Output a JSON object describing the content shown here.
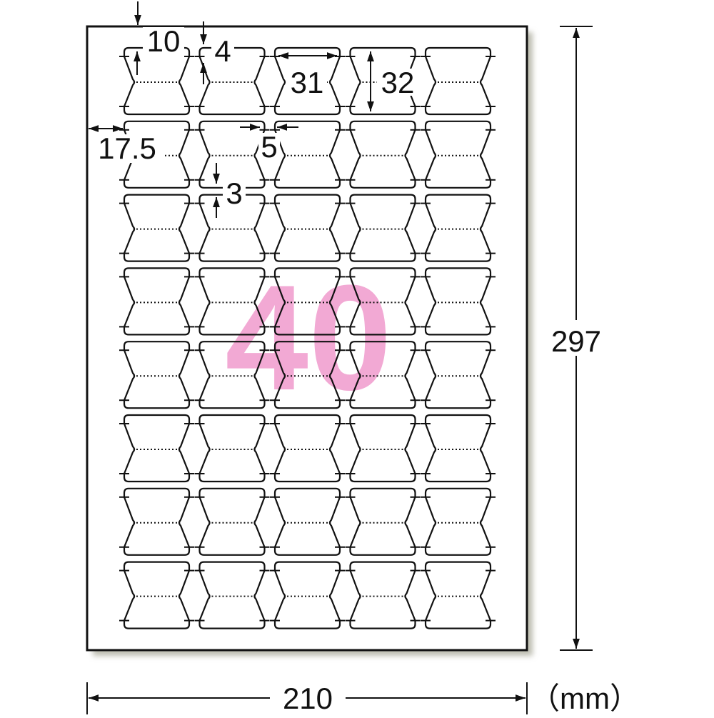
{
  "sheet": {
    "label_count_text": "40",
    "label_count_color": "#f2a9d4",
    "rows": 8,
    "columns": 5
  },
  "dimensions": {
    "top_margin": "10",
    "label_gap_top": "4",
    "label_width": "31",
    "label_height": "32",
    "left_margin": "17.5",
    "column_gap": "5",
    "row_gap": "3",
    "sheet_height": "297",
    "sheet_width": "210",
    "unit": "（mm）"
  }
}
